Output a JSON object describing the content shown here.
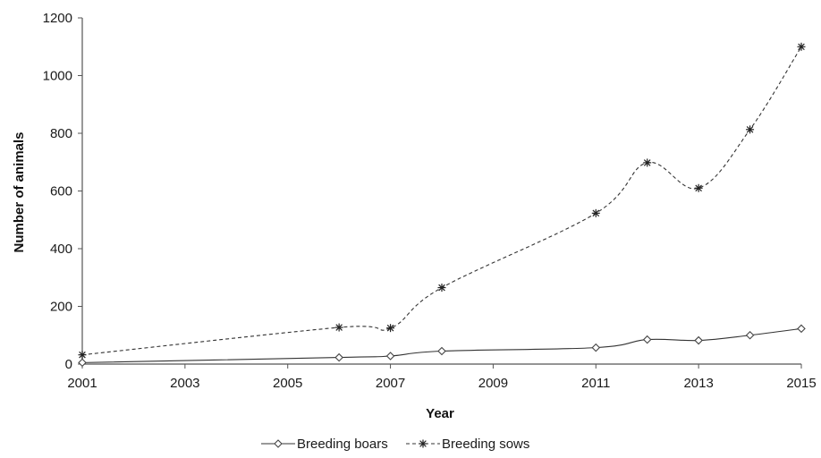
{
  "chart_data": {
    "type": "line",
    "title": "",
    "xlabel": "Year",
    "ylabel": "Number of animals",
    "xlim": [
      2001,
      2015
    ],
    "ylim": [
      0,
      1200
    ],
    "x_ticks": [
      2001,
      2003,
      2005,
      2007,
      2009,
      2011,
      2013,
      2015
    ],
    "y_ticks": [
      0,
      200,
      400,
      600,
      800,
      1000,
      1200
    ],
    "grid": false,
    "legend_position": "bottom",
    "series": [
      {
        "name": "Breeding boars",
        "line_style": "solid",
        "marker": "diamond",
        "color": "#333333",
        "x": [
          2001,
          2006,
          2007,
          2008,
          2011,
          2012,
          2013,
          2014,
          2015
        ],
        "y": [
          5,
          23,
          28,
          45,
          57,
          85,
          82,
          100,
          123
        ]
      },
      {
        "name": "Breeding sows",
        "line_style": "dashed",
        "marker": "asterisk",
        "color": "#333333",
        "x": [
          2001,
          2006,
          2007,
          2008,
          2011,
          2012,
          2013,
          2014,
          2015
        ],
        "y": [
          32,
          127,
          125,
          265,
          523,
          698,
          610,
          813,
          1100
        ]
      }
    ]
  }
}
